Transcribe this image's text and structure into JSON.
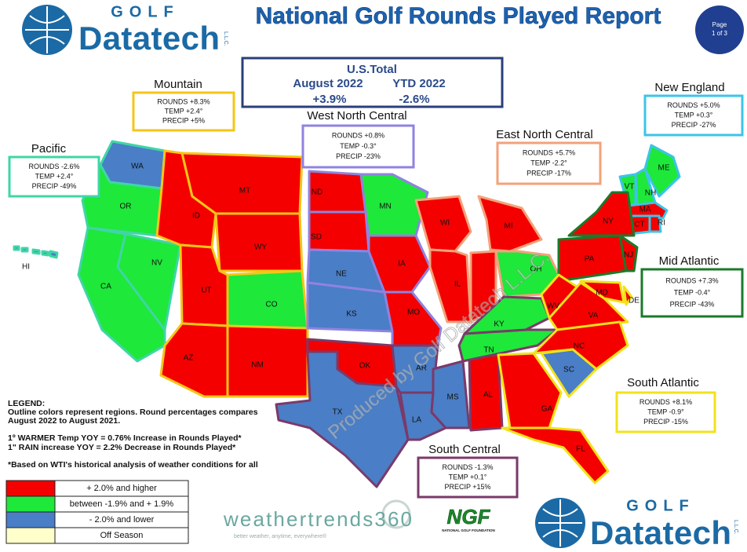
{
  "header": {
    "logo_top": "GOLF",
    "logo_main": "Datatech",
    "logo_suffix": "L.L.C.",
    "title": "National Golf Rounds Played Report",
    "page_label": "Page",
    "page_number": "1 of 3"
  },
  "us_total": {
    "label": "U.S.Total",
    "periods": [
      "August 2022",
      "YTD  2022"
    ],
    "values": [
      "+3.9%",
      "-2.6%"
    ]
  },
  "regions": [
    {
      "name": "Pacific",
      "rounds": "ROUNDS -2.6%",
      "temp": "TEMP +2.4°",
      "precip": "PRECIP -49%",
      "color": "#3fd6a6",
      "states": [
        {
          "label": "WA",
          "color": "#4a7ec6"
        },
        {
          "label": "OR",
          "color": "#1ee83a"
        },
        {
          "label": "CA",
          "color": "#1ee83a"
        },
        {
          "label": "NV",
          "color": "#1ee83a"
        },
        {
          "label": "HI",
          "color": "#4a7ec6"
        }
      ]
    },
    {
      "name": "Mountain",
      "rounds": "ROUNDS +8.3%",
      "temp": "TEMP +2.4°",
      "precip": "PRECIP +5%",
      "color": "#f5c518",
      "states": [
        {
          "label": "ID",
          "color": "#f40000"
        },
        {
          "label": "MT",
          "color": "#f40000"
        },
        {
          "label": "WY",
          "color": "#f40000"
        },
        {
          "label": "UT",
          "color": "#f40000"
        },
        {
          "label": "CO",
          "color": "#1ee83a"
        },
        {
          "label": "AZ",
          "color": "#f40000"
        },
        {
          "label": "NM",
          "color": "#f40000"
        }
      ]
    },
    {
      "name": "West North Central",
      "rounds": "ROUNDS +0.8%",
      "temp": "TEMP -0.3°",
      "precip": "PRECIP -23%",
      "color": "#8f83e0",
      "states": [
        {
          "label": "ND",
          "color": "#f40000"
        },
        {
          "label": "SD",
          "color": "#f40000"
        },
        {
          "label": "MN",
          "color": "#1ee83a"
        },
        {
          "label": "NE",
          "color": "#4a7ec6"
        },
        {
          "label": "KS",
          "color": "#4a7ec6"
        },
        {
          "label": "IA",
          "color": "#f40000"
        },
        {
          "label": "MO",
          "color": "#f40000"
        }
      ]
    },
    {
      "name": "East North Central",
      "rounds": "ROUNDS +5.7%",
      "temp": "TEMP -2.2°",
      "precip": "PRECIP -17%",
      "color": "#f3a27a",
      "states": [
        {
          "label": "WI",
          "color": "#f40000"
        },
        {
          "label": "MI",
          "color": "#f40000"
        },
        {
          "label": "IL",
          "color": "#f40000"
        },
        {
          "label": null,
          "color": "#f40000"
        },
        {
          "label": "OH",
          "color": "#1ee83a"
        }
      ]
    },
    {
      "name": "South Central",
      "rounds": "ROUNDS -1.3%",
      "temp": "TEMP +0.1°",
      "precip": "PRECIP +15%",
      "color": "#7a3a6a",
      "states": [
        {
          "label": "OK",
          "color": "#f40000"
        },
        {
          "label": "TX",
          "color": "#4a7ec6"
        },
        {
          "label": "AR",
          "color": "#4a7ec6"
        },
        {
          "label": "LA",
          "color": "#4a7ec6"
        },
        {
          "label": "MS",
          "color": "#4a7ec6"
        },
        {
          "label": "AL",
          "color": "#f40000"
        },
        {
          "label": "TN",
          "color": "#1ee83a"
        },
        {
          "label": "KY",
          "color": "#1ee83a"
        }
      ]
    },
    {
      "name": "New England",
      "rounds": "ROUNDS +5.0%",
      "temp": "TEMP +0.3°",
      "precip": "PRECIP -27%",
      "color": "#3cc4e8",
      "states": [
        {
          "label": "ME",
          "color": "#1ee83a"
        },
        {
          "label": "VT",
          "color": "#1ee83a"
        },
        {
          "label": "NH",
          "color": "#1ee83a"
        },
        {
          "label": "MA",
          "color": "#f40000"
        },
        {
          "label": "CT",
          "color": "#f40000"
        },
        {
          "label": "RI",
          "color": "#f40000"
        }
      ]
    },
    {
      "name": "Mid Atlantic",
      "rounds": "ROUNDS +7.3%",
      "temp": "TEMP -0.4°",
      "precip": "PRECIP -43%",
      "color": "#1a7a2a",
      "states": [
        {
          "label": "NY",
          "color": "#f40000"
        },
        {
          "label": "PA",
          "color": "#f40000"
        },
        {
          "label": "NJ",
          "color": "#f40000"
        }
      ]
    },
    {
      "name": "South Atlantic",
      "rounds": "ROUNDS +8.1%",
      "temp": "TEMP -0.9°",
      "precip": "PRECIP -15%",
      "color": "#f2e21a",
      "states": [
        {
          "label": "WV",
          "color": "#f40000"
        },
        {
          "label": "VA",
          "color": "#f40000"
        },
        {
          "label": "MD",
          "color": "#f40000"
        },
        {
          "label": "DE",
          "color": "#f40000"
        },
        {
          "label": "NC",
          "color": "#f40000"
        },
        {
          "label": "SC",
          "color": "#4a7ec6"
        },
        {
          "label": "GA",
          "color": "#f40000"
        },
        {
          "label": "FL",
          "color": "#f40000"
        }
      ]
    }
  ],
  "watermark": "Produced by Golf Datatech L.L.C.",
  "legend": {
    "title": "LEGEND:",
    "lines": [
      "Outline colors represent regions. Round percentages compares",
      "August 2022 to August 2021.",
      "1º WARMER Temp YOY = 0.76% Increase in Rounds Played*",
      "1\" RAIN increase YOY = 2.2% Decrease in Rounds Played*",
      "*Based on WTI's historical analysis of weather conditions for all"
    ],
    "items": [
      {
        "label": "+ 2.0% and higher",
        "color": "#f40000"
      },
      {
        "label": "between -1.9% and + 1.9%",
        "color": "#1ee83a"
      },
      {
        "label": "- 2.0% and lower",
        "color": "#4a7ec6"
      },
      {
        "label": "Off Season",
        "color": "#ffffcc"
      }
    ]
  },
  "sponsors": {
    "weathertrends": "weathertrends360",
    "weathertrends_tagline": "better weather, anytime, everywhere®",
    "ngf": "NGF",
    "ngf_full": "NATIONAL GOLF FOUNDATION"
  }
}
